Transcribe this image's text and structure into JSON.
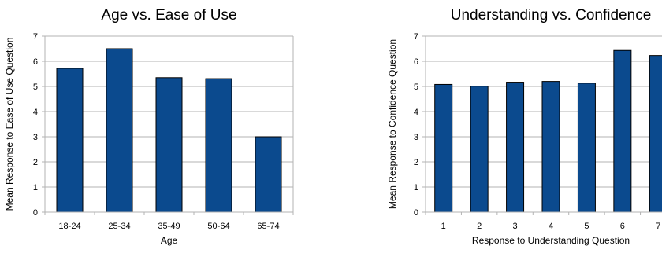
{
  "chart_data": [
    {
      "type": "bar",
      "title": "Age vs. Ease of Use",
      "xlabel": "Age",
      "ylabel": "Mean Response to Ease of Use Question",
      "categories": [
        "18-24",
        "25-34",
        "35-49",
        "50-64",
        "65-74"
      ],
      "values": [
        5.72,
        6.5,
        5.35,
        5.31,
        3.0
      ],
      "ylim": [
        0,
        7
      ],
      "yticks": [
        "0",
        "1",
        "2",
        "3",
        "4",
        "5",
        "6",
        "7"
      ],
      "grid": true,
      "legend": "none",
      "bar_color": "#0b4a8e"
    },
    {
      "type": "bar",
      "title": "Understanding vs. Confidence",
      "xlabel": "Response to Understanding Question",
      "ylabel": "Mean Response to Confidence Question",
      "categories": [
        "1",
        "2",
        "3",
        "4",
        "5",
        "6",
        "7"
      ],
      "values": [
        5.08,
        5.01,
        5.17,
        5.2,
        5.13,
        6.43,
        6.23
      ],
      "ylim": [
        0,
        7
      ],
      "yticks": [
        "0",
        "1",
        "2",
        "3",
        "4",
        "5",
        "6",
        "7"
      ],
      "grid": true,
      "legend": "none",
      "bar_color": "#0b4a8e"
    }
  ]
}
